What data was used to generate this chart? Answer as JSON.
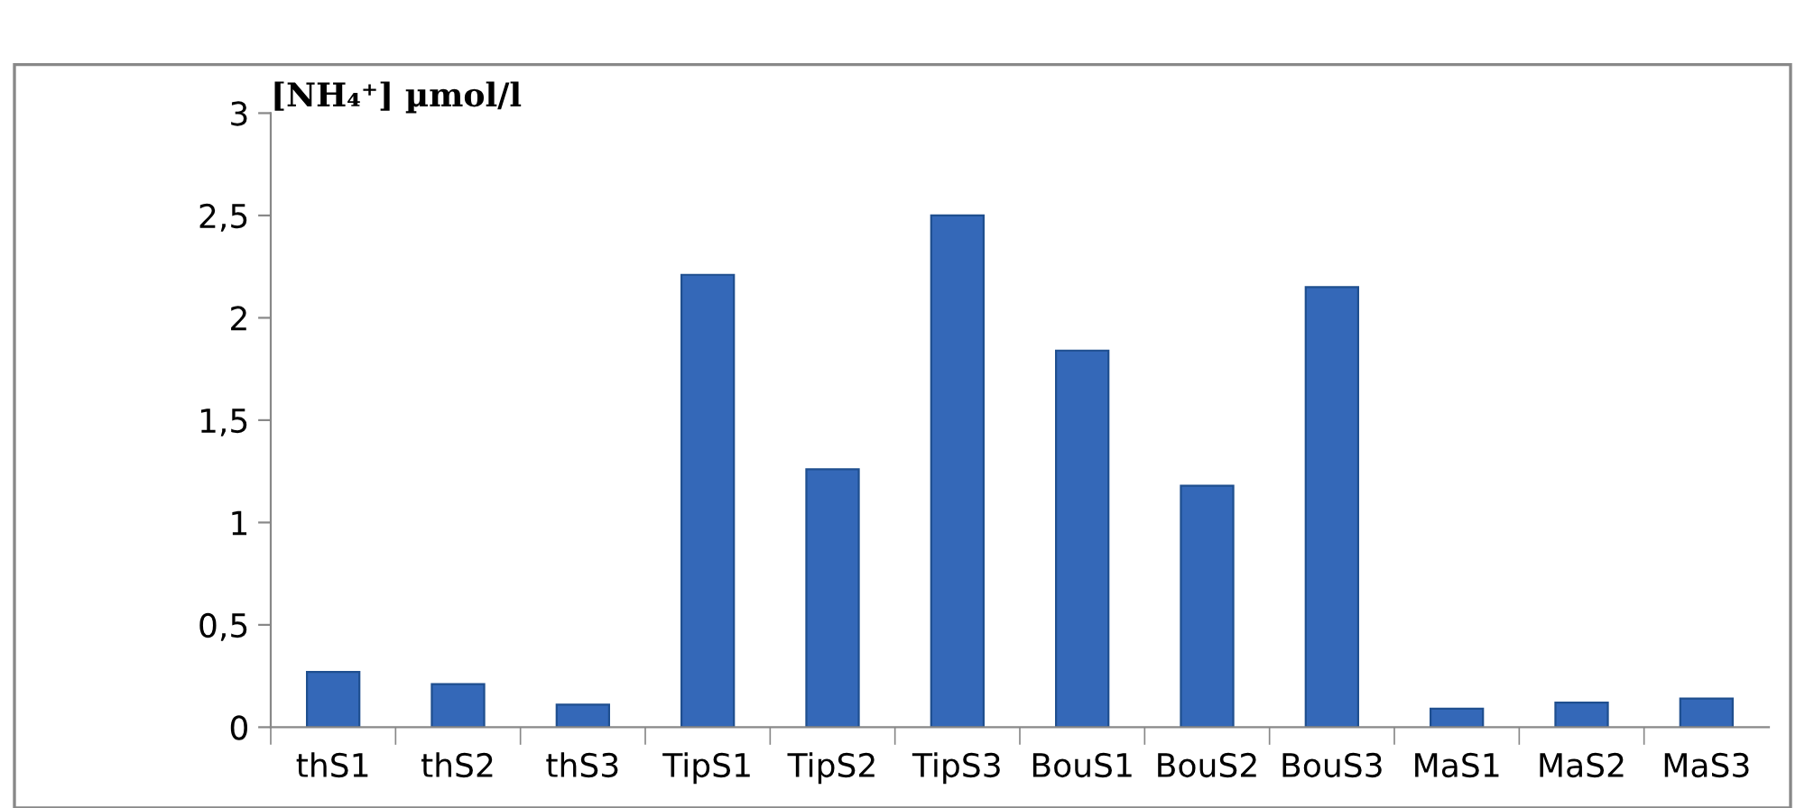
{
  "chart_data": {
    "type": "bar",
    "ylabel": "[NH₄⁺] µmol/l",
    "categories": [
      "thS1",
      "thS2",
      "thS3",
      "TipS1",
      "TipS2",
      "TipS3",
      "BouS1",
      "BouS2",
      "BouS3",
      "MaS1",
      "MaS2",
      "MaS3"
    ],
    "values": [
      0.27,
      0.21,
      0.11,
      2.21,
      1.26,
      2.5,
      1.84,
      1.18,
      2.15,
      0.09,
      0.12,
      0.14
    ],
    "color": "#3468b8",
    "ylim": [
      0,
      3
    ],
    "yticks": [
      0,
      {
        "value": 0.5,
        "label": "0,5"
      },
      1,
      {
        "value": 1.5,
        "label": "1,5"
      },
      2,
      {
        "value": 2.5,
        "label": "2,5"
      },
      3
    ],
    "grid": false
  }
}
